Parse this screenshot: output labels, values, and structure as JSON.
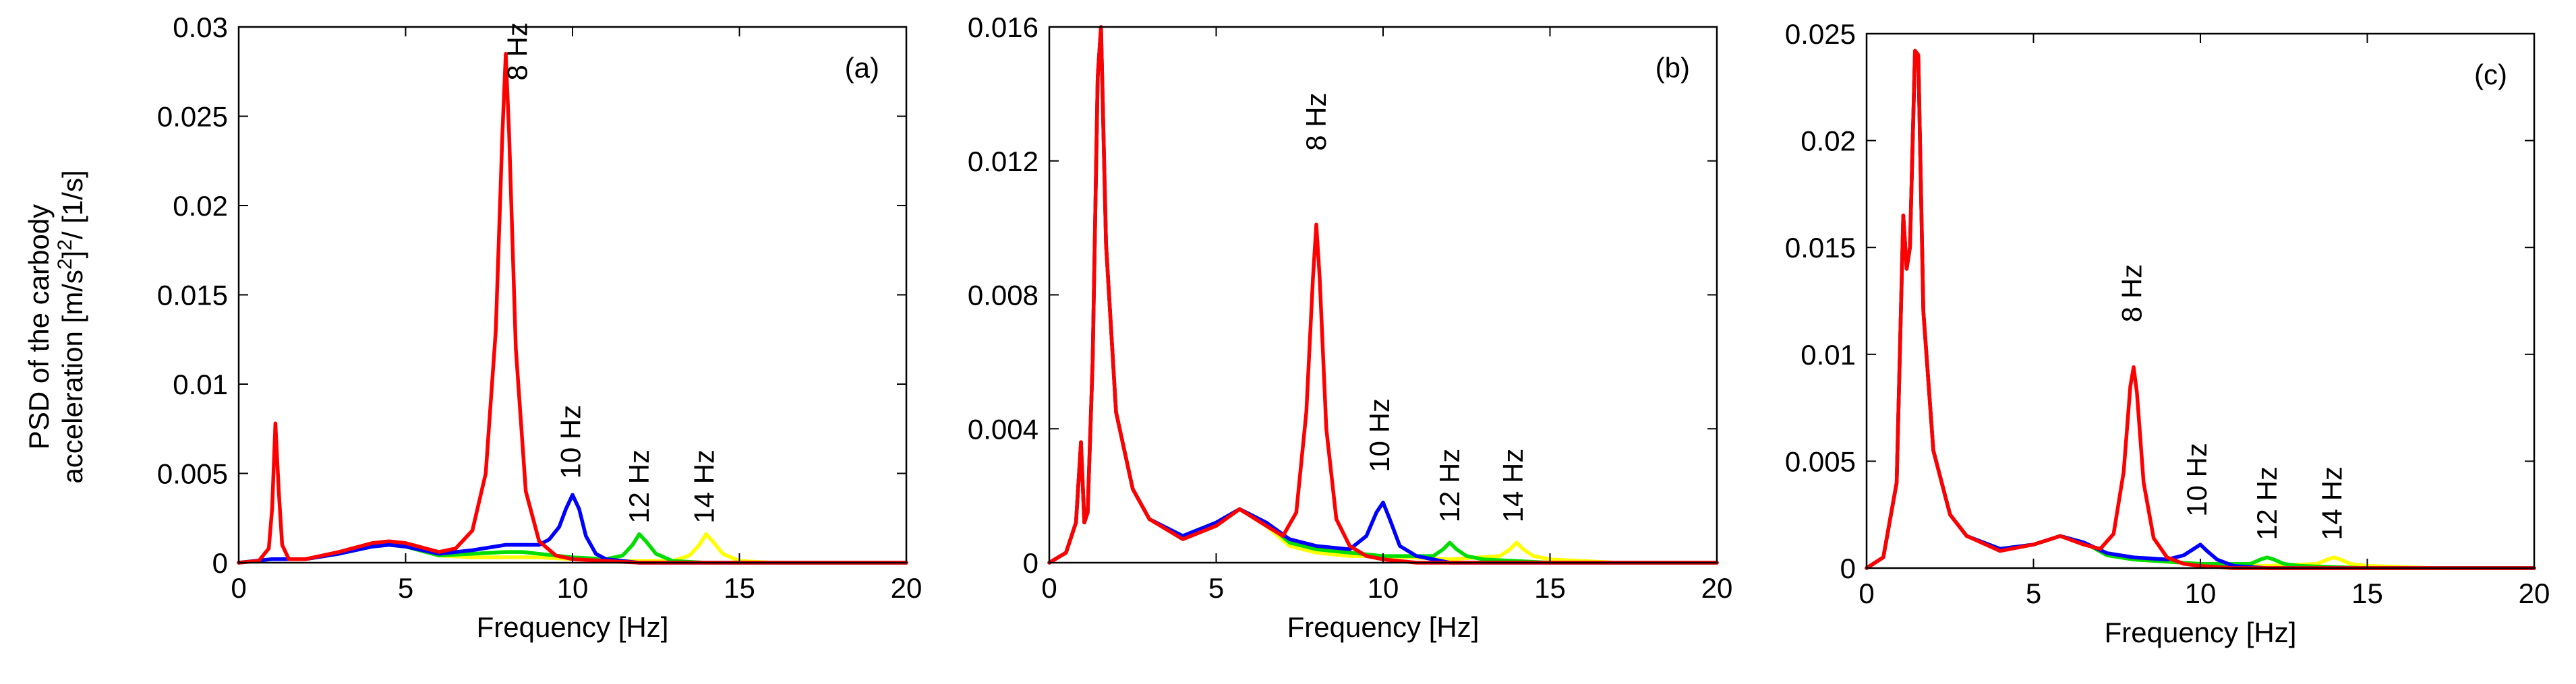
{
  "figure": {
    "ylabel_line1": "PSD of the carbody",
    "ylabel_line2_main": "acceleration [m/s",
    "ylabel_line2_sup": "2",
    "ylabel_line2_mid": "]",
    "ylabel_line2_sup2": "2",
    "ylabel_line2_tail": "/ [1/s]"
  },
  "chart_data": [
    {
      "type": "line",
      "panel_label": "(a)",
      "xlabel": "Frequency [Hz]",
      "xlim": [
        0,
        20
      ],
      "ylim": [
        0,
        0.03
      ],
      "xticks": [
        0,
        5,
        10,
        15,
        20
      ],
      "xtick_labels": [
        "0",
        "5",
        "10",
        "15",
        "20"
      ],
      "yticks": [
        0,
        0.005,
        0.01,
        0.015,
        0.02,
        0.025,
        0.03
      ],
      "ytick_labels": [
        "0",
        "0.005",
        "0.01",
        "0.015",
        "0.02",
        "0.025",
        "0.03"
      ],
      "annotations": [
        {
          "text": "8 Hz",
          "x": 8.35,
          "y": 0.027
        },
        {
          "text": "10 Hz",
          "x": 9.95,
          "y": 0.0047
        },
        {
          "text": "12 Hz",
          "x": 12.0,
          "y": 0.0022
        },
        {
          "text": "14 Hz",
          "x": 13.95,
          "y": 0.0022
        }
      ],
      "series": [
        {
          "name": "14 Hz",
          "color": "#ffff00",
          "x": [
            0,
            0.5,
            1.0,
            1.5,
            2,
            3,
            4,
            4.5,
            5,
            6,
            7,
            8,
            9,
            10,
            11,
            12,
            13,
            13.5,
            13.8,
            14.0,
            14.2,
            14.5,
            15,
            16,
            18,
            20
          ],
          "y": [
            0,
            0.0001,
            0.0002,
            0.0002,
            0.0002,
            0.0005,
            0.0009,
            0.001,
            0.0009,
            0.0004,
            0.0003,
            0.0003,
            0.0003,
            0.0002,
            0.0001,
            0.0001,
            0.0001,
            0.0004,
            0.001,
            0.0016,
            0.0012,
            0.0005,
            0.0001,
            0,
            0,
            0
          ]
        },
        {
          "name": "12 Hz",
          "color": "#00dd00",
          "x": [
            0,
            0.5,
            1.0,
            1.5,
            2,
            3,
            4,
            4.5,
            5,
            6,
            7,
            8,
            8.5,
            9,
            10,
            11,
            11.5,
            11.8,
            12.0,
            12.2,
            12.5,
            13,
            14,
            16,
            18,
            20
          ],
          "y": [
            0,
            0.0001,
            0.0002,
            0.0002,
            0.0002,
            0.0005,
            0.0009,
            0.001,
            0.0009,
            0.0004,
            0.0005,
            0.0006,
            0.0006,
            0.0005,
            0.0003,
            0.0002,
            0.0004,
            0.001,
            0.0016,
            0.0012,
            0.0005,
            0.0001,
            0,
            0,
            0,
            0
          ]
        },
        {
          "name": "10 Hz",
          "color": "#0000ff",
          "x": [
            0,
            0.5,
            1.0,
            1.5,
            2,
            3,
            4,
            4.5,
            5,
            6,
            7,
            8,
            8.5,
            9,
            9.3,
            9.6,
            9.8,
            10.0,
            10.2,
            10.4,
            10.7,
            11,
            12,
            14,
            16,
            20
          ],
          "y": [
            0,
            0.0001,
            0.0002,
            0.0002,
            0.0002,
            0.0005,
            0.0009,
            0.001,
            0.0009,
            0.0005,
            0.0007,
            0.001,
            0.001,
            0.001,
            0.0013,
            0.002,
            0.003,
            0.0038,
            0.003,
            0.0015,
            0.0005,
            0.0002,
            0,
            0,
            0,
            0
          ]
        },
        {
          "name": "8 Hz",
          "color": "#ff0000",
          "x": [
            0,
            0.6,
            0.9,
            1.0,
            1.1,
            1.2,
            1.3,
            1.5,
            2,
            3,
            4,
            4.5,
            5,
            6,
            6.5,
            7,
            7.4,
            7.7,
            7.9,
            8.0,
            8.1,
            8.3,
            8.6,
            9,
            9.5,
            10,
            11,
            12,
            14,
            16,
            20
          ],
          "y": [
            0,
            0.0001,
            0.0008,
            0.003,
            0.0078,
            0.004,
            0.001,
            0.0002,
            0.0002,
            0.0006,
            0.0011,
            0.0012,
            0.0011,
            0.0006,
            0.0008,
            0.0018,
            0.005,
            0.013,
            0.024,
            0.0285,
            0.024,
            0.012,
            0.004,
            0.0012,
            0.0004,
            0.0002,
            0.0001,
            0,
            0,
            0,
            0
          ]
        }
      ]
    },
    {
      "type": "line",
      "panel_label": "(b)",
      "xlabel": "Frequency [Hz]",
      "xlim": [
        0,
        20
      ],
      "ylim": [
        0,
        0.016
      ],
      "xticks": [
        0,
        5,
        10,
        15,
        20
      ],
      "xtick_labels": [
        "0",
        "5",
        "10",
        "15",
        "20"
      ],
      "yticks": [
        0,
        0.004,
        0.008,
        0.012,
        0.016
      ],
      "ytick_labels": [
        "0",
        "0.004",
        "0.008",
        "0.012",
        "0.016"
      ],
      "annotations": [
        {
          "text": "8 Hz",
          "x": 8.0,
          "y": 0.0123
        },
        {
          "text": "10 Hz",
          "x": 9.9,
          "y": 0.0027
        },
        {
          "text": "12 Hz",
          "x": 12.0,
          "y": 0.0012
        },
        {
          "text": "14 Hz",
          "x": 13.9,
          "y": 0.0012
        }
      ],
      "series": [
        {
          "name": "14 Hz",
          "color": "#ffff00",
          "x": [
            0,
            0.5,
            0.8,
            0.95,
            1.05,
            1.15,
            1.3,
            1.45,
            1.55,
            1.7,
            2,
            2.5,
            3,
            4,
            5,
            5.7,
            6.5,
            7.2,
            8,
            9,
            10,
            12,
            13.5,
            13.8,
            14.0,
            14.2,
            14.5,
            15,
            17,
            20
          ],
          "y": [
            0,
            0.0003,
            0.0012,
            0.0036,
            0.0012,
            0.0015,
            0.006,
            0.0145,
            0.016,
            0.0095,
            0.0045,
            0.0022,
            0.0013,
            0.0008,
            0.0011,
            0.0016,
            0.0011,
            0.0005,
            0.0003,
            0.0002,
            0.0002,
            0.0001,
            0.0002,
            0.0004,
            0.0006,
            0.0004,
            0.0002,
            0.0001,
            0,
            0
          ]
        },
        {
          "name": "12 Hz",
          "color": "#00dd00",
          "x": [
            0,
            0.5,
            0.8,
            0.95,
            1.05,
            1.15,
            1.3,
            1.45,
            1.55,
            1.7,
            2,
            2.5,
            3,
            4,
            5,
            5.7,
            6.5,
            7.2,
            8,
            9,
            10,
            11.5,
            11.8,
            12.0,
            12.2,
            12.5,
            13,
            15,
            20
          ],
          "y": [
            0,
            0.0003,
            0.0012,
            0.0036,
            0.0012,
            0.0015,
            0.006,
            0.0145,
            0.016,
            0.0095,
            0.0045,
            0.0022,
            0.0013,
            0.0008,
            0.0012,
            0.0016,
            0.0012,
            0.0006,
            0.0004,
            0.0003,
            0.0002,
            0.0002,
            0.0004,
            0.0006,
            0.0004,
            0.0002,
            0.0001,
            0,
            0
          ]
        },
        {
          "name": "10 Hz",
          "color": "#0000ff",
          "x": [
            0,
            0.5,
            0.8,
            0.95,
            1.05,
            1.15,
            1.3,
            1.45,
            1.55,
            1.7,
            2,
            2.5,
            3,
            4,
            5,
            5.7,
            6.5,
            7.2,
            8,
            9,
            9.5,
            9.8,
            10.0,
            10.2,
            10.5,
            11,
            12,
            15,
            20
          ],
          "y": [
            0,
            0.0003,
            0.0012,
            0.0036,
            0.0012,
            0.0015,
            0.006,
            0.0145,
            0.016,
            0.0095,
            0.0045,
            0.0022,
            0.0013,
            0.0008,
            0.0012,
            0.0016,
            0.0012,
            0.0007,
            0.0005,
            0.0004,
            0.0008,
            0.0015,
            0.0018,
            0.0013,
            0.0005,
            0.0002,
            0,
            0,
            0
          ]
        },
        {
          "name": "8 Hz",
          "color": "#ff0000",
          "x": [
            0,
            0.5,
            0.8,
            0.95,
            1.05,
            1.15,
            1.3,
            1.45,
            1.55,
            1.7,
            2,
            2.5,
            3,
            4,
            5,
            5.7,
            6.5,
            7,
            7.4,
            7.7,
            7.9,
            8.0,
            8.1,
            8.3,
            8.6,
            9,
            9.5,
            10,
            11,
            12,
            15,
            20
          ],
          "y": [
            0,
            0.0003,
            0.0012,
            0.0036,
            0.0012,
            0.0015,
            0.006,
            0.0145,
            0.016,
            0.0095,
            0.0045,
            0.0022,
            0.0013,
            0.0007,
            0.0011,
            0.0016,
            0.0011,
            0.0008,
            0.0015,
            0.0045,
            0.0085,
            0.0101,
            0.0085,
            0.004,
            0.0013,
            0.0005,
            0.0002,
            0.0001,
            0,
            0,
            0,
            0
          ]
        }
      ]
    },
    {
      "type": "line",
      "panel_label": "(c)",
      "xlabel": "Frequency [Hz]",
      "xlim": [
        0,
        20
      ],
      "ylim": [
        0,
        0.025
      ],
      "xticks": [
        0,
        5,
        10,
        15,
        20
      ],
      "xtick_labels": [
        "0",
        "5",
        "10",
        "15",
        "20"
      ],
      "yticks": [
        0,
        0.005,
        0.01,
        0.015,
        0.02,
        0.025
      ],
      "ytick_labels": [
        "0",
        "0.005",
        "0.01",
        "0.015",
        "0.02",
        "0.025"
      ],
      "annotations": [
        {
          "text": "8 Hz",
          "x": 7.95,
          "y": 0.0115
        },
        {
          "text": "10 Hz",
          "x": 9.9,
          "y": 0.0024
        },
        {
          "text": "12 Hz",
          "x": 12.0,
          "y": 0.0013
        },
        {
          "text": "14 Hz",
          "x": 13.95,
          "y": 0.0013
        }
      ],
      "series": [
        {
          "name": "14 Hz",
          "color": "#ffff00",
          "x": [
            0,
            0.5,
            0.9,
            1.1,
            1.2,
            1.3,
            1.45,
            1.55,
            1.7,
            2,
            2.5,
            3,
            4,
            5,
            5.8,
            6.5,
            7.2,
            8,
            9,
            10,
            12,
            13.5,
            13.8,
            14.0,
            14.2,
            14.5,
            15,
            17,
            20
          ],
          "y": [
            0,
            0.0005,
            0.004,
            0.0165,
            0.014,
            0.015,
            0.0242,
            0.024,
            0.012,
            0.0055,
            0.0025,
            0.0015,
            0.0009,
            0.0011,
            0.0015,
            0.0012,
            0.0006,
            0.0004,
            0.0003,
            0.0002,
            0.0001,
            0.0002,
            0.0004,
            0.0005,
            0.0004,
            0.0002,
            0.0001,
            0,
            0
          ]
        },
        {
          "name": "12 Hz",
          "color": "#00dd00",
          "x": [
            0,
            0.5,
            0.9,
            1.1,
            1.2,
            1.3,
            1.45,
            1.55,
            1.7,
            2,
            2.5,
            3,
            4,
            5,
            5.8,
            6.5,
            7.2,
            8,
            9,
            10,
            11.5,
            11.8,
            12.0,
            12.2,
            12.5,
            13,
            15,
            20
          ],
          "y": [
            0,
            0.0005,
            0.004,
            0.0165,
            0.014,
            0.015,
            0.0242,
            0.024,
            0.012,
            0.0055,
            0.0025,
            0.0015,
            0.0009,
            0.0011,
            0.0015,
            0.0012,
            0.0006,
            0.0004,
            0.0003,
            0.0002,
            0.0002,
            0.0004,
            0.0005,
            0.0004,
            0.0002,
            0.0001,
            0,
            0
          ]
        },
        {
          "name": "10 Hz",
          "color": "#0000ff",
          "x": [
            0,
            0.5,
            0.9,
            1.1,
            1.2,
            1.3,
            1.45,
            1.55,
            1.7,
            2,
            2.5,
            3,
            4,
            5,
            5.8,
            6.5,
            7.2,
            8,
            9,
            9.5,
            9.8,
            10.0,
            10.2,
            10.5,
            11,
            12,
            15,
            20
          ],
          "y": [
            0,
            0.0005,
            0.004,
            0.0165,
            0.014,
            0.015,
            0.0242,
            0.024,
            0.012,
            0.0055,
            0.0025,
            0.0015,
            0.0009,
            0.0011,
            0.0015,
            0.0012,
            0.0007,
            0.0005,
            0.0004,
            0.0006,
            0.0009,
            0.0011,
            0.0008,
            0.0004,
            0.0001,
            0,
            0,
            0
          ]
        },
        {
          "name": "8 Hz",
          "color": "#ff0000",
          "x": [
            0,
            0.5,
            0.9,
            1.1,
            1.2,
            1.3,
            1.45,
            1.55,
            1.7,
            2,
            2.5,
            3,
            4,
            5,
            5.8,
            6.5,
            7,
            7.4,
            7.7,
            7.9,
            8.0,
            8.1,
            8.3,
            8.6,
            9,
            9.5,
            10,
            11,
            12,
            15,
            20
          ],
          "y": [
            0,
            0.0005,
            0.004,
            0.0165,
            0.014,
            0.015,
            0.0242,
            0.024,
            0.012,
            0.0055,
            0.0025,
            0.0015,
            0.0008,
            0.0011,
            0.0015,
            0.0011,
            0.0009,
            0.0016,
            0.0045,
            0.0085,
            0.0094,
            0.0082,
            0.004,
            0.0014,
            0.0005,
            0.0002,
            0.0001,
            0,
            0,
            0,
            0
          ]
        }
      ]
    }
  ]
}
